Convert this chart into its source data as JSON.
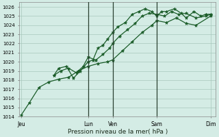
{
  "bg_color": "#d4ece5",
  "grid_color": "#a8c8bc",
  "line_color": "#1a5c28",
  "vline_color": "#2a4030",
  "xlabel": "Pression niveau de la mer( hPa )",
  "xlabel_fontsize": 6.5,
  "ylim": [
    1014,
    1026.5
  ],
  "ytick_min": 1014,
  "ytick_max": 1026,
  "ytick_step": 1,
  "xlim": [
    0,
    20
  ],
  "xtick_positions": [
    0.2,
    7.0,
    9.5,
    14.0,
    19.5
  ],
  "xtick_labels": [
    "Jeu",
    "Lun",
    "Ven",
    "Sam",
    "Dim"
  ],
  "vlines": [
    7.0,
    9.5,
    14.0
  ],
  "series1_x": [
    0.2,
    1.0,
    2.0,
    3.0,
    4.0,
    5.0,
    6.0,
    7.0,
    8.0,
    9.0,
    9.5,
    10.5,
    11.5,
    12.5,
    13.5,
    14.0,
    15.0,
    16.0,
    17.0,
    18.0,
    19.5
  ],
  "series1_y": [
    1014.2,
    1015.5,
    1017.2,
    1017.8,
    1018.1,
    1018.3,
    1019.0,
    1019.5,
    1019.8,
    1020.0,
    1020.2,
    1021.2,
    1022.2,
    1023.2,
    1024.0,
    1024.5,
    1024.3,
    1024.8,
    1024.2,
    1024.0,
    1025.0
  ],
  "series2_x": [
    3.5,
    4.0,
    4.8,
    5.5,
    6.2,
    7.0,
    7.5,
    8.0,
    8.5,
    9.0,
    9.5,
    10.0,
    10.8,
    11.5,
    12.2,
    12.8,
    13.5,
    14.0,
    14.5,
    15.0,
    15.8,
    16.5,
    17.0,
    17.8,
    18.5,
    19.0,
    19.5
  ],
  "series2_y": [
    1018.5,
    1019.3,
    1019.5,
    1018.2,
    1019.0,
    1020.0,
    1020.2,
    1021.5,
    1021.8,
    1022.5,
    1023.2,
    1023.8,
    1024.3,
    1025.2,
    1025.5,
    1025.8,
    1025.5,
    1025.0,
    1025.5,
    1025.5,
    1025.8,
    1025.3,
    1024.8,
    1025.5,
    1025.0,
    1025.2,
    1025.2
  ],
  "series3_x": [
    3.5,
    4.2,
    5.0,
    5.8,
    6.5,
    7.0,
    7.8,
    8.5,
    9.2,
    9.5,
    10.2,
    11.0,
    11.8,
    12.5,
    13.2,
    14.0,
    14.8,
    15.5,
    16.2,
    17.0,
    18.0,
    19.0,
    19.5
  ],
  "series3_y": [
    1018.5,
    1019.0,
    1019.3,
    1018.8,
    1019.5,
    1020.5,
    1020.2,
    1020.8,
    1021.5,
    1022.0,
    1022.8,
    1023.5,
    1024.2,
    1025.0,
    1025.3,
    1025.2,
    1025.0,
    1025.5,
    1025.2,
    1025.3,
    1024.8,
    1025.0,
    1025.2
  ]
}
